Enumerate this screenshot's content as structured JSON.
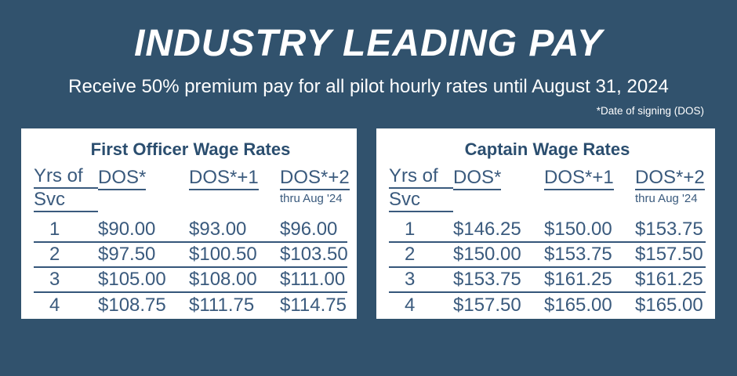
{
  "header": {
    "title": "INDUSTRY LEADING PAY",
    "subtitle": "Receive 50% premium pay for all pilot hourly rates until August 31, 2024",
    "footnote": "*Date of signing (DOS)"
  },
  "colors": {
    "background": "#31526D",
    "card": "#FFFFFF",
    "text": "#3A5A7D",
    "card_title": "#2B4E6F",
    "white": "#FFFFFF"
  },
  "tables": [
    {
      "title": "First Officer Wage Rates",
      "header": {
        "col1_line1": "Yrs of",
        "col1_line2": "Svc",
        "col2": "DOS*",
        "col3": "DOS*+1",
        "col4": "DOS*+2",
        "col4_note": "thru Aug '24"
      },
      "rows": [
        [
          "1",
          "$90.00",
          "$93.00",
          "$96.00"
        ],
        [
          "2",
          "$97.50",
          "$100.50",
          "$103.50"
        ],
        [
          "3",
          "$105.00",
          "$108.00",
          "$111.00"
        ],
        [
          "4",
          "$108.75",
          "$111.75",
          "$114.75"
        ]
      ]
    },
    {
      "title": "Captain Wage Rates",
      "header": {
        "col1_line1": "Yrs of",
        "col1_line2": "Svc",
        "col2": "DOS*",
        "col3": "DOS*+1",
        "col4": "DOS*+2",
        "col4_note": "thru Aug '24"
      },
      "rows": [
        [
          "1",
          "$146.25",
          "$150.00",
          "$153.75"
        ],
        [
          "2",
          "$150.00",
          "$153.75",
          "$157.50"
        ],
        [
          "3",
          "$153.75",
          "$161.25",
          "$161.25"
        ],
        [
          "4",
          "$157.50",
          "$165.00",
          "$165.00"
        ]
      ]
    }
  ],
  "chart_data": [
    {
      "type": "table",
      "title": "First Officer Wage Rates",
      "columns": [
        "Yrs of Svc",
        "DOS*",
        "DOS*+1",
        "DOS*+2 thru Aug '24"
      ],
      "rows": [
        [
          1,
          90.0,
          93.0,
          96.0
        ],
        [
          2,
          97.5,
          100.5,
          103.5
        ],
        [
          3,
          105.0,
          108.0,
          111.0
        ],
        [
          4,
          108.75,
          111.75,
          114.75
        ]
      ]
    },
    {
      "type": "table",
      "title": "Captain Wage Rates",
      "columns": [
        "Yrs of Svc",
        "DOS*",
        "DOS*+1",
        "DOS*+2 thru Aug '24"
      ],
      "rows": [
        [
          1,
          146.25,
          150.0,
          153.75
        ],
        [
          2,
          150.0,
          153.75,
          157.5
        ],
        [
          3,
          153.75,
          161.25,
          161.25
        ],
        [
          4,
          157.5,
          165.0,
          165.0
        ]
      ]
    }
  ]
}
